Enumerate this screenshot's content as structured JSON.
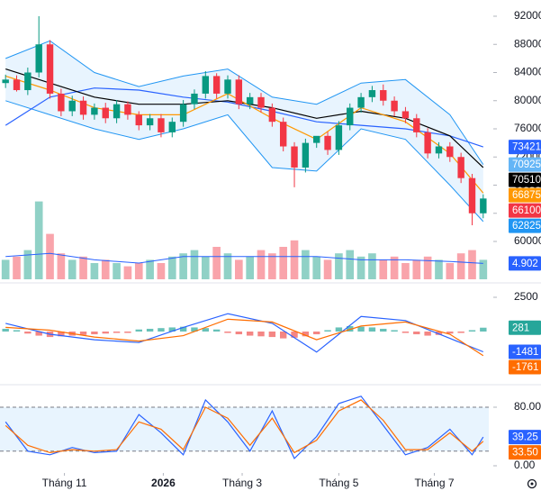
{
  "chart_data": [
    {
      "type": "candlestick",
      "x": [
        0,
        1,
        2,
        3,
        4,
        5,
        6,
        7,
        8,
        9,
        10,
        11,
        12,
        13,
        14,
        15,
        16,
        17,
        18,
        19,
        20,
        21,
        22,
        23,
        24,
        25,
        26,
        27,
        28,
        29,
        30,
        31,
        32,
        33,
        34,
        35,
        36,
        37,
        38,
        39,
        40,
        41,
        42,
        43
      ],
      "open": [
        82500,
        83000,
        81500,
        84000,
        88000,
        81000,
        78500,
        80000,
        78000,
        79000,
        77500,
        79500,
        78000,
        76500,
        77500,
        75500,
        77000,
        79500,
        81000,
        83500,
        81000,
        83000,
        79500,
        80500,
        79000,
        77000,
        73500,
        70500,
        74000,
        75000,
        73000,
        76500,
        79000,
        80500,
        81500,
        80000,
        78500,
        77500,
        75500,
        72500,
        73500,
        72000,
        69000,
        64000
      ],
      "high": [
        83700,
        83600,
        84700,
        92000,
        88600,
        81700,
        80700,
        80600,
        79600,
        79700,
        80100,
        79900,
        78500,
        78100,
        78100,
        77600,
        80100,
        81600,
        84200,
        83900,
        83600,
        83600,
        81100,
        81100,
        79600,
        77600,
        74100,
        74600,
        74700,
        75600,
        77100,
        79600,
        81100,
        82100,
        82300,
        80600,
        79100,
        78100,
        76100,
        74100,
        74100,
        72600,
        69600,
        66700
      ],
      "low": [
        81800,
        81300,
        80800,
        83300,
        80300,
        77800,
        77800,
        77300,
        77300,
        76800,
        76800,
        77300,
        75800,
        75800,
        74800,
        74800,
        76300,
        78800,
        80300,
        80300,
        80300,
        78800,
        78800,
        78300,
        76300,
        72800,
        67700,
        69800,
        73300,
        72300,
        72300,
        75800,
        78300,
        79800,
        79300,
        77800,
        76800,
        74800,
        71800,
        71800,
        71300,
        68300,
        62300,
        63300
      ],
      "close": [
        83000,
        81500,
        84000,
        88000,
        81000,
        78500,
        80000,
        78000,
        79000,
        77500,
        79500,
        78000,
        76500,
        77500,
        75500,
        77000,
        79500,
        81000,
        83500,
        81000,
        83000,
        79500,
        80500,
        79000,
        77000,
        73500,
        70500,
        74000,
        75000,
        73000,
        76500,
        79000,
        80500,
        81500,
        80000,
        78500,
        77500,
        75500,
        72500,
        73500,
        72000,
        69000,
        64000,
        66100
      ],
      "up_color": "#089981",
      "down_color": "#f23645",
      "last_label_color": "#f23645",
      "xlim": [
        -0.5,
        43.5
      ],
      "ylim": [
        60000,
        92000
      ],
      "yticks": [
        92000,
        88000,
        84000,
        80000,
        76000,
        72000,
        68000,
        64000,
        60000
      ],
      "band": {
        "color": "#2196f3",
        "fill": "rgba(33,150,243,0.1)",
        "x": [
          0,
          4,
          8,
          12,
          16,
          20,
          24,
          28,
          32,
          36,
          40,
          43
        ],
        "upper": [
          86000,
          88500,
          84000,
          82000,
          83500,
          84500,
          80500,
          79500,
          82500,
          83000,
          78000,
          70925
        ],
        "lower": [
          80000,
          78000,
          76000,
          74500,
          76000,
          78000,
          70500,
          70000,
          76000,
          74500,
          68000,
          62825
        ]
      },
      "overlays": [
        {
          "color": "#2962ff",
          "x": [
            0,
            4,
            8,
            12,
            16,
            20,
            24,
            28,
            32,
            36,
            40,
            43
          ],
          "values": [
            76500,
            80500,
            81800,
            81500,
            80500,
            79800,
            78500,
            77000,
            76500,
            76000,
            75000,
            73421
          ]
        },
        {
          "color": "#000000",
          "x": [
            0,
            4,
            8,
            12,
            16,
            20,
            24,
            28,
            32,
            36,
            40,
            43
          ],
          "values": [
            84500,
            82500,
            80500,
            79500,
            79500,
            80000,
            79000,
            77500,
            78500,
            77500,
            75000,
            70510
          ]
        },
        {
          "color": "#ff9800",
          "x": [
            0,
            4,
            8,
            12,
            16,
            20,
            24,
            28,
            32,
            36,
            40,
            43
          ],
          "values": [
            83500,
            81500,
            79000,
            78000,
            78000,
            81000,
            77500,
            74500,
            79000,
            77000,
            72500,
            66875
          ]
        }
      ],
      "volume": {
        "ylim": [
          0,
          25
        ],
        "values": [
          6,
          7,
          9,
          24,
          14,
          8,
          6,
          7,
          5,
          6,
          5,
          4,
          5,
          6,
          5,
          7,
          8,
          9,
          7,
          10,
          8,
          6,
          7,
          9,
          8,
          10,
          12,
          9,
          7,
          6,
          8,
          9,
          7,
          8,
          6,
          7,
          5,
          6,
          7,
          6,
          5,
          8,
          9,
          6
        ],
        "ma": {
          "color": "#2962ff",
          "x": [
            0,
            4,
            8,
            12,
            16,
            20,
            24,
            28,
            32,
            36,
            40,
            43
          ],
          "values": [
            7,
            8,
            6,
            5,
            7,
            7,
            7,
            7,
            6,
            6,
            5.5,
            4.902
          ]
        }
      }
    },
    {
      "type": "macd",
      "xlim": [
        -0.5,
        43.5
      ],
      "ylim": [
        -3000,
        3000
      ],
      "yticks": [
        2500
      ],
      "histogram": {
        "up_color": "#26a69a",
        "down_color": "#ef5350",
        "values": [
          200,
          100,
          -150,
          -300,
          -400,
          -350,
          -300,
          -250,
          -200,
          -150,
          -100,
          -100,
          150,
          200,
          250,
          300,
          350,
          300,
          250,
          150,
          -100,
          -200,
          -300,
          -350,
          -400,
          -500,
          -450,
          -350,
          -200,
          100,
          300,
          400,
          350,
          300,
          200,
          100,
          -100,
          -200,
          -300,
          -250,
          -150,
          -100,
          100,
          281
        ]
      },
      "series": [
        {
          "color": "#2962ff",
          "x": [
            0,
            4,
            8,
            12,
            16,
            20,
            24,
            28,
            32,
            36,
            40,
            43
          ],
          "values": [
            600,
            -200,
            -600,
            -800,
            300,
            1300,
            600,
            -1500,
            1100,
            800,
            -500,
            -1481
          ]
        },
        {
          "color": "#ff6d00",
          "x": [
            0,
            4,
            8,
            12,
            16,
            20,
            24,
            28,
            32,
            36,
            40,
            43
          ],
          "values": [
            300,
            100,
            -400,
            -700,
            -300,
            900,
            700,
            -600,
            400,
            700,
            -200,
            -1761
          ]
        }
      ]
    },
    {
      "type": "stochastic",
      "xlim": [
        -0.5,
        43.5
      ],
      "ylim": [
        0,
        100
      ],
      "yticks": [
        {
          "value": 80,
          "label": "80.00"
        },
        {
          "value": 0,
          "label": "0.00"
        }
      ],
      "bands": [
        20,
        80
      ],
      "band_fill": "rgba(33,150,243,0.1)",
      "series": [
        {
          "color": "#2962ff",
          "x": [
            0,
            2,
            4,
            6,
            8,
            10,
            12,
            14,
            16,
            18,
            20,
            22,
            24,
            26,
            28,
            30,
            32,
            34,
            36,
            38,
            40,
            42,
            43
          ],
          "values": [
            60,
            20,
            15,
            25,
            18,
            20,
            70,
            45,
            15,
            90,
            60,
            20,
            75,
            10,
            40,
            85,
            95,
            55,
            15,
            25,
            50,
            15,
            39.25
          ]
        },
        {
          "color": "#ff6d00",
          "x": [
            0,
            2,
            4,
            6,
            8,
            10,
            12,
            14,
            16,
            18,
            20,
            22,
            24,
            26,
            28,
            30,
            32,
            34,
            36,
            38,
            40,
            42,
            43
          ],
          "values": [
            55,
            28,
            18,
            22,
            20,
            22,
            60,
            50,
            22,
            80,
            65,
            28,
            65,
            18,
            35,
            75,
            90,
            62,
            22,
            22,
            45,
            20,
            33.5
          ],
          "value_labels": [
            null,
            null,
            null,
            null,
            null,
            null,
            null,
            null,
            null,
            null,
            null,
            null,
            null,
            null,
            null,
            null,
            null,
            null,
            null,
            null,
            null,
            null,
            "33.50"
          ]
        }
      ],
      "xticks": [
        {
          "value": 5.3,
          "label": "Tháng 11"
        },
        {
          "value": 14.2,
          "label": "2026",
          "bold": true
        },
        {
          "value": 21.3,
          "label": "Tháng 3"
        },
        {
          "value": 30,
          "label": "Tháng 5"
        },
        {
          "value": 38.6,
          "label": "Tháng 7"
        }
      ]
    }
  ]
}
